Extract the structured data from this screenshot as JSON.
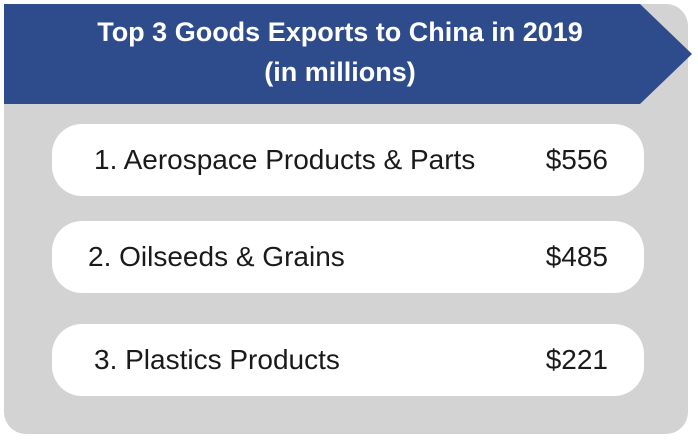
{
  "header": {
    "title_line1": "Top 3 Goods Exports to China in 2019",
    "title_line2": "(in millions)",
    "color": "#2e4c8c"
  },
  "panel_color": "#d3d3d3",
  "items": [
    {
      "label": "1. Aerospace Products & Parts",
      "value": "$556"
    },
    {
      "label": "2. Oilseeds & Grains",
      "value": "$485"
    },
    {
      "label": "3. Plastics Products",
      "value": "$221"
    }
  ]
}
